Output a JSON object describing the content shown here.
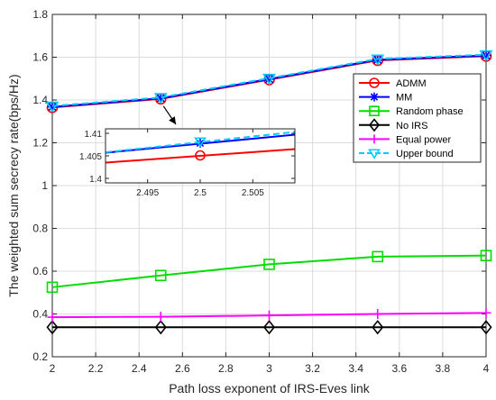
{
  "chart_data": [
    {
      "type": "line",
      "xlabel": "Path loss exponent of IRS-Eves link",
      "ylabel": "The weighted sum secrecy rate(bps/Hz)",
      "x": [
        2,
        2.5,
        3,
        3.5,
        4
      ],
      "xlim": [
        2,
        4
      ],
      "ylim": [
        0.2,
        1.8
      ],
      "xticks": [
        "2",
        "2.2",
        "2.4",
        "2.6",
        "2.8",
        "3",
        "3.2",
        "3.4",
        "3.6",
        "3.8",
        "4"
      ],
      "yticks": [
        "0.2",
        "0.4",
        "0.6",
        "0.8",
        "1",
        "1.2",
        "1.4",
        "1.6",
        "1.8"
      ],
      "grid": true,
      "legend_position": "right",
      "series": [
        {
          "name": "ADMM",
          "color": "#ff0000",
          "marker": "circle",
          "dash": "solid",
          "values": [
            1.365,
            1.405,
            1.495,
            1.585,
            1.605
          ]
        },
        {
          "name": "MM",
          "color": "#0000ff",
          "marker": "asterisk",
          "dash": "solid",
          "values": [
            1.368,
            1.408,
            1.498,
            1.588,
            1.608
          ]
        },
        {
          "name": "Random phase",
          "color": "#00dd00",
          "marker": "square",
          "dash": "solid",
          "values": [
            0.525,
            0.58,
            0.632,
            0.668,
            0.673
          ]
        },
        {
          "name": "No IRS",
          "color": "#000000",
          "marker": "diamond",
          "dash": "solid",
          "values": [
            0.338,
            0.338,
            0.338,
            0.338,
            0.338
          ]
        },
        {
          "name": "Equal power",
          "color": "#ff00ff",
          "marker": "plus",
          "dash": "solid",
          "values": [
            0.385,
            0.387,
            0.393,
            0.4,
            0.405
          ]
        },
        {
          "name": "Upper bound",
          "color": "#00ccff",
          "marker": "triangle-down",
          "dash": "dashed",
          "values": [
            1.372,
            1.412,
            1.502,
            1.592,
            1.612
          ]
        }
      ]
    },
    {
      "type": "line",
      "inset": true,
      "xlim": [
        2.491,
        2.509
      ],
      "ylim": [
        1.399,
        1.411
      ],
      "xticks": [
        "2.495",
        "2.5",
        "2.505"
      ],
      "yticks": [
        "1.4",
        "1.405",
        "1.41"
      ],
      "series": [
        {
          "name": "ADMM",
          "color": "#ff0000",
          "dash": "solid",
          "x": [
            2.491,
            2.509
          ],
          "y": [
            1.4035,
            1.4065
          ],
          "marker_x": 2.5,
          "marker_y": 1.4051,
          "marker": "circle"
        },
        {
          "name": "MM",
          "color": "#0000ff",
          "dash": "solid",
          "x": [
            2.491,
            2.509
          ],
          "y": [
            1.4057,
            1.4097
          ],
          "marker_x": 2.5,
          "marker_y": 1.4078,
          "marker": "asterisk"
        },
        {
          "name": "Upper bound",
          "color": "#00ccff",
          "dash": "dashed",
          "x": [
            2.491,
            2.509
          ],
          "y": [
            1.4058,
            1.4103
          ],
          "marker_x": 2.5,
          "marker_y": 1.4082,
          "marker": "triangle-down"
        }
      ]
    }
  ]
}
